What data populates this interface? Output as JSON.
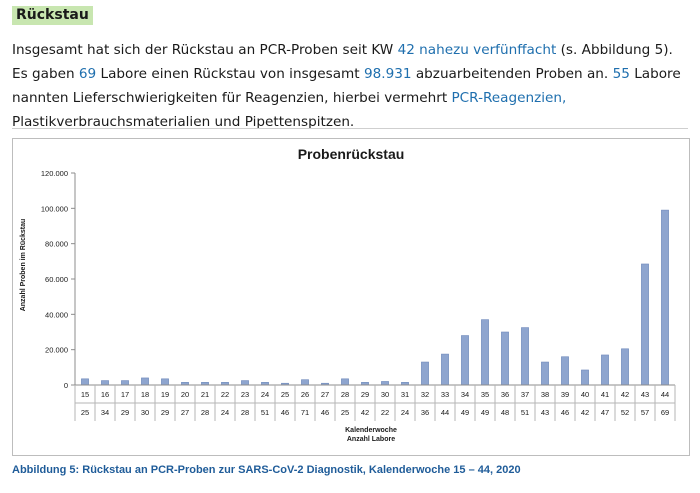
{
  "heading": "Rückstau",
  "intro": [
    {
      "t": "Insgesamt hat sich der Rückstau an PCR-Proben seit KW "
    },
    {
      "t": "42 nahezu verfünffacht",
      "hl": true
    },
    {
      "t": " (s. Abbildung 5). Es gaben "
    },
    {
      "t": "69",
      "hl": true
    },
    {
      "t": " Labore einen Rückstau von insgesamt "
    },
    {
      "t": "98.931",
      "hl": true
    },
    {
      "t": " abzuarbeitenden Proben an. "
    },
    {
      "t": "55",
      "hl": true
    },
    {
      "t": " Labore nannten Lieferschwierigkeiten für Reagenzien, hierbei vermehrt "
    },
    {
      "t": "PCR-Reagenzien,",
      "hl": true
    },
    {
      "t": " Plastikverbrauchsmaterialien und Pipettenspitzen."
    }
  ],
  "caption": "Abbildung 5: Rückstau an PCR-Proben zur SARS-CoV-2 Diagnostik, Kalenderwoche 15 – 44, 2020",
  "colors": {
    "highlight": "#1f6fae",
    "bar": "#8ea5cf",
    "bar_stroke": "#6f89bb",
    "heading_bg": "#c8e6b0"
  },
  "chart_data": {
    "type": "bar",
    "title": "Probenrückstau",
    "ylabel": "Anzahl Proben im Rückstau",
    "xlabel": "Kalenderwoche",
    "xlabel2": "Anzahl Labore",
    "ylim": [
      0,
      120000
    ],
    "yticks": [
      0,
      20000,
      40000,
      60000,
      80000,
      100000,
      120000
    ],
    "ytick_labels": [
      "0",
      "20.000",
      "40.000",
      "60.000",
      "80.000",
      "100.000",
      "120.000"
    ],
    "grid": false,
    "legend": "none",
    "categories": [
      "15",
      "16",
      "17",
      "18",
      "19",
      "20",
      "21",
      "22",
      "23",
      "24",
      "25",
      "26",
      "27",
      "28",
      "29",
      "30",
      "31",
      "32",
      "33",
      "34",
      "35",
      "36",
      "37",
      "38",
      "39",
      "40",
      "41",
      "42",
      "43",
      "44"
    ],
    "labs": [
      "25",
      "34",
      "29",
      "30",
      "29",
      "27",
      "28",
      "24",
      "28",
      "51",
      "46",
      "71",
      "46",
      "25",
      "42",
      "22",
      "24",
      "36",
      "44",
      "49",
      "49",
      "48",
      "51",
      "43",
      "46",
      "42",
      "47",
      "52",
      "57",
      "69"
    ],
    "values": [
      3500,
      2500,
      2500,
      4000,
      3500,
      1500,
      1500,
      1500,
      2500,
      1500,
      1000,
      3000,
      1000,
      3500,
      1500,
      2000,
      1500,
      13000,
      17500,
      28000,
      37000,
      30000,
      32500,
      13000,
      16000,
      8500,
      17000,
      20500,
      68500,
      99000
    ]
  }
}
